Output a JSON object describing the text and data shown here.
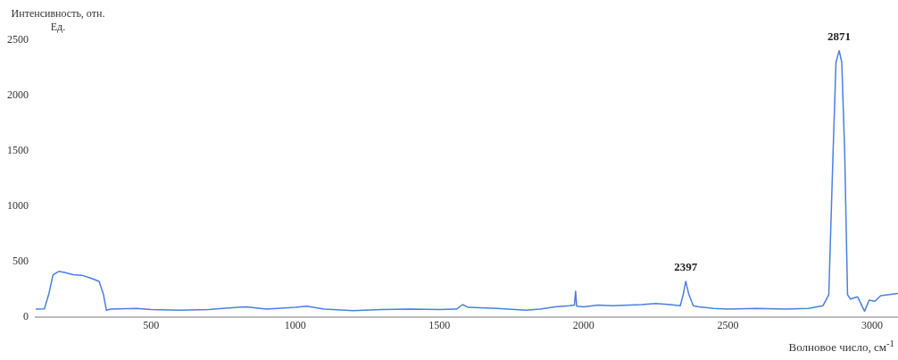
{
  "chart_data": {
    "type": "line",
    "ylabel": "Интенсивность, отн. Ед.",
    "xlabel": "Волновое число, см$^{-1}$",
    "xlim": [
      100,
      3090
    ],
    "xticks": [
      500,
      1000,
      1500,
      2000,
      2500,
      3000
    ],
    "ylim": [
      0,
      2500
    ],
    "yticks": [
      0,
      500,
      1000,
      1500,
      2000,
      2500
    ],
    "grid": false,
    "legend": false,
    "marker": "none",
    "line_style": "solid",
    "annotations": [
      {
        "text": "2397",
        "x": 2354,
        "y": 320
      },
      {
        "text": "2871",
        "x": 2886,
        "y": 2406
      }
    ],
    "series": [
      {
        "color": "#4a7fe0",
        "x": [
          100,
          130,
          145,
          160,
          180,
          200,
          230,
          260,
          290,
          320,
          335,
          345,
          360,
          450,
          500,
          600,
          700,
          800,
          830,
          900,
          1000,
          1040,
          1100,
          1200,
          1300,
          1400,
          1500,
          1560,
          1580,
          1600,
          1700,
          1800,
          1850,
          1900,
          1950,
          1968,
          1972,
          1976,
          2000,
          2050,
          2100,
          2200,
          2250,
          2300,
          2335,
          2345,
          2354,
          2365,
          2380,
          2400,
          2450,
          2500,
          2600,
          2700,
          2780,
          2830,
          2850,
          2865,
          2875,
          2886,
          2895,
          2905,
          2915,
          2925,
          2950,
          2974,
          2990,
          3010,
          3030,
          3060,
          3090
        ],
        "values": [
          70,
          72,
          200,
          380,
          410,
          400,
          380,
          375,
          350,
          320,
          200,
          60,
          70,
          75,
          65,
          60,
          65,
          85,
          90,
          70,
          85,
          95,
          70,
          55,
          65,
          70,
          65,
          70,
          110,
          85,
          75,
          60,
          70,
          90,
          100,
          105,
          230,
          95,
          90,
          105,
          100,
          110,
          120,
          110,
          100,
          200,
          320,
          200,
          100,
          90,
          75,
          70,
          75,
          70,
          75,
          100,
          200,
          1500,
          2300,
          2406,
          2300,
          1500,
          200,
          160,
          180,
          50,
          150,
          140,
          190,
          200,
          210
        ]
      }
    ]
  }
}
